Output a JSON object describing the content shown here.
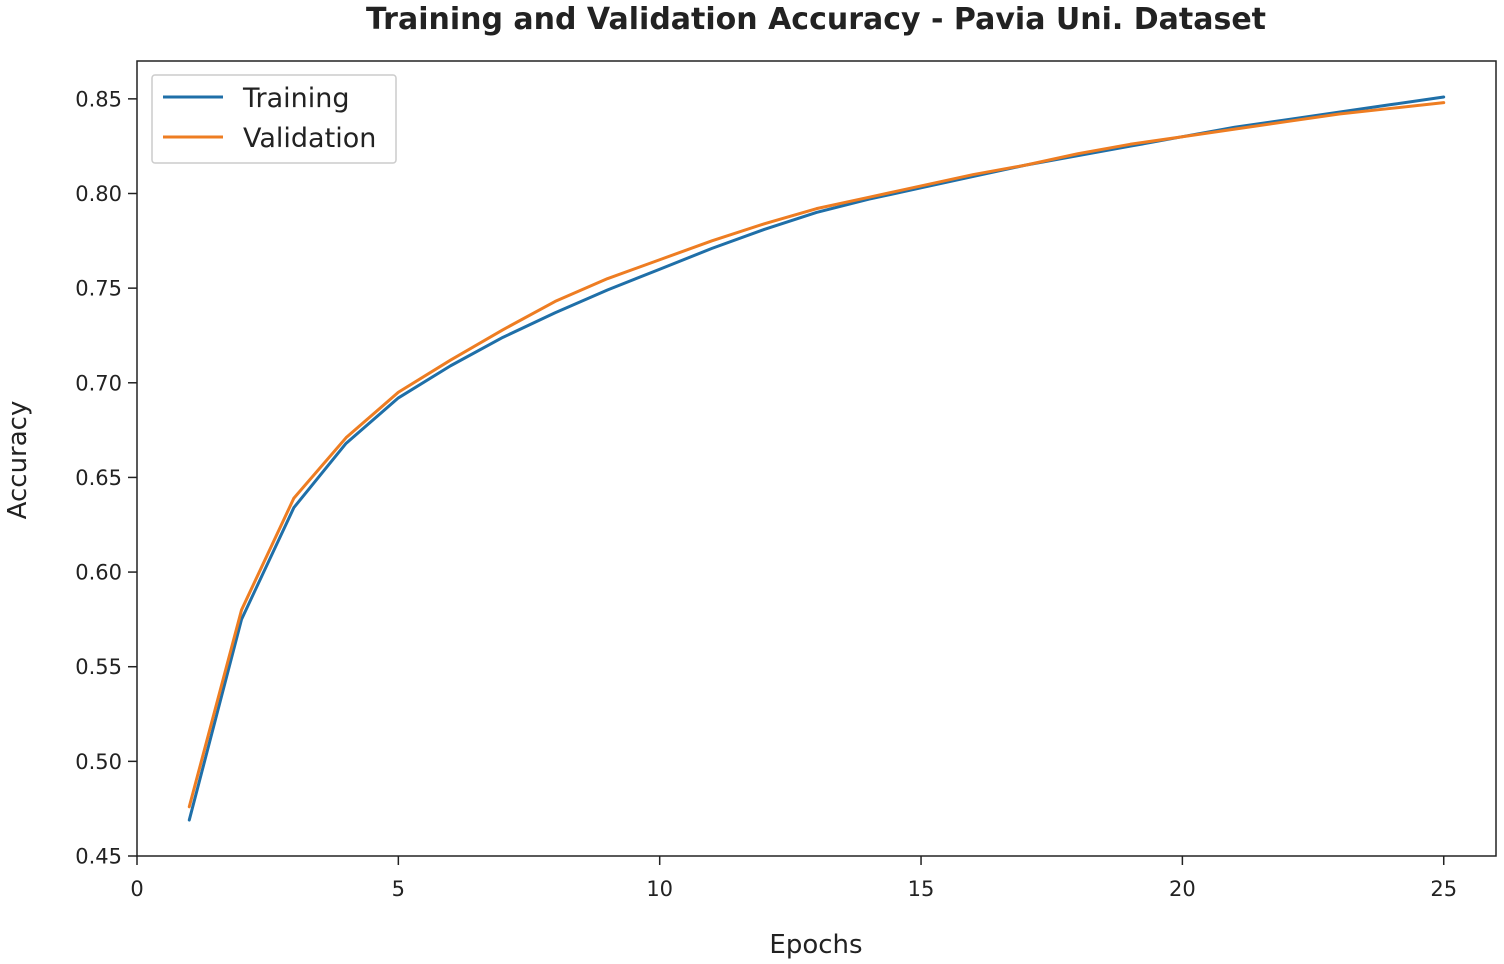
{
  "chart_data": {
    "type": "line",
    "title": "Training and Validation Accuracy - Pavia Uni. Dataset",
    "xlabel": "Epochs",
    "ylabel": "Accuracy",
    "xlim": [
      0,
      26
    ],
    "ylim": [
      0.45,
      0.87
    ],
    "x_ticks": [
      0,
      5,
      10,
      15,
      20,
      25
    ],
    "x_tick_labels": [
      "0",
      "5",
      "10",
      "15",
      "20",
      "25"
    ],
    "y_ticks": [
      0.45,
      0.5,
      0.55,
      0.6,
      0.65,
      0.7,
      0.75,
      0.8,
      0.85
    ],
    "y_tick_labels": [
      "0.45",
      "0.50",
      "0.55",
      "0.60",
      "0.65",
      "0.70",
      "0.75",
      "0.80",
      "0.85"
    ],
    "legend_position": "top-left",
    "grid": false,
    "x": [
      1,
      2,
      3,
      4,
      5,
      6,
      7,
      8,
      9,
      10,
      11,
      12,
      13,
      14,
      15,
      16,
      17,
      18,
      19,
      20,
      21,
      22,
      23,
      24,
      25
    ],
    "series": [
      {
        "name": "Training",
        "color": "#1f6fa8",
        "values": [
          0.469,
          0.575,
          0.634,
          0.668,
          0.692,
          0.709,
          0.724,
          0.737,
          0.749,
          0.76,
          0.771,
          0.781,
          0.79,
          0.797,
          0.803,
          0.809,
          0.815,
          0.82,
          0.825,
          0.83,
          0.835,
          0.839,
          0.843,
          0.847,
          0.851
        ]
      },
      {
        "name": "Validation",
        "color": "#ee7d22",
        "values": [
          0.476,
          0.58,
          0.639,
          0.671,
          0.695,
          0.712,
          0.728,
          0.743,
          0.755,
          0.765,
          0.775,
          0.784,
          0.792,
          0.798,
          0.804,
          0.81,
          0.815,
          0.821,
          0.826,
          0.83,
          0.834,
          0.838,
          0.842,
          0.845,
          0.848
        ]
      }
    ]
  }
}
